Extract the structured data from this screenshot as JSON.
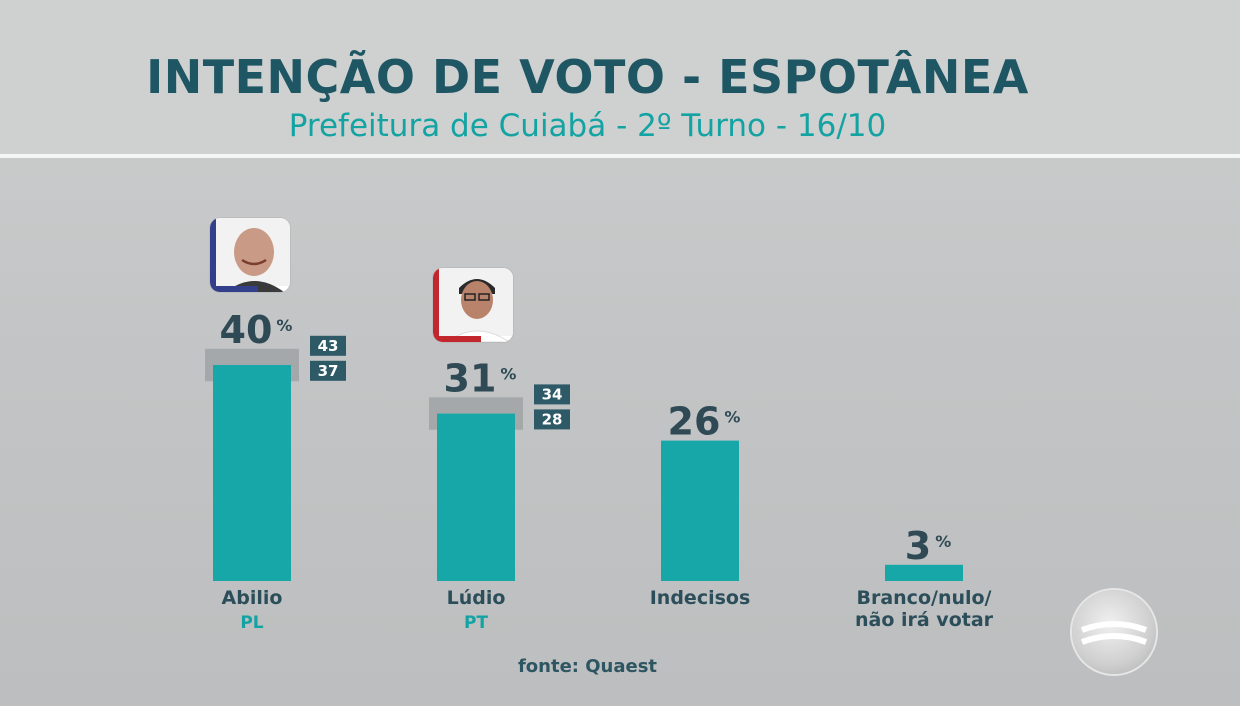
{
  "title": "INTENÇÃO DE VOTO - ESPOTÂNEA",
  "subtitle": "Prefeitura de Cuiabá - 2º Turno - 16/10",
  "source": "fonte: Quaest",
  "colors": {
    "bar": "#17a7a9",
    "title": "#1f5663",
    "subtitle": "#13a3a3",
    "value_text": "#2f4a55",
    "box_bg": "#2e5a67",
    "party": "#13a3a3",
    "accent_abilio": "#343f8c",
    "accent_ludio": "#c1272d"
  },
  "chart_data": {
    "type": "bar",
    "categories": [
      "Abilio",
      "Lúdio",
      "Indecisos",
      "Branco/nulo/\nnão irá votar"
    ],
    "category_lines": [
      [
        "Abilio"
      ],
      [
        "Lúdio"
      ],
      [
        "Indecisos"
      ],
      [
        "Branco/nulo/",
        "não irá votar"
      ]
    ],
    "parties": [
      "PL",
      "PT",
      "",
      ""
    ],
    "values": [
      40,
      31,
      26,
      3
    ],
    "value_labels": [
      "40",
      "31",
      "26",
      "3"
    ],
    "unit": "%",
    "margin_high": [
      43,
      34,
      null,
      null
    ],
    "margin_low": [
      37,
      28,
      null,
      null
    ],
    "photos": [
      "abilio-photo",
      "ludio-photo",
      null,
      null
    ],
    "ylim": [
      0,
      50
    ]
  }
}
